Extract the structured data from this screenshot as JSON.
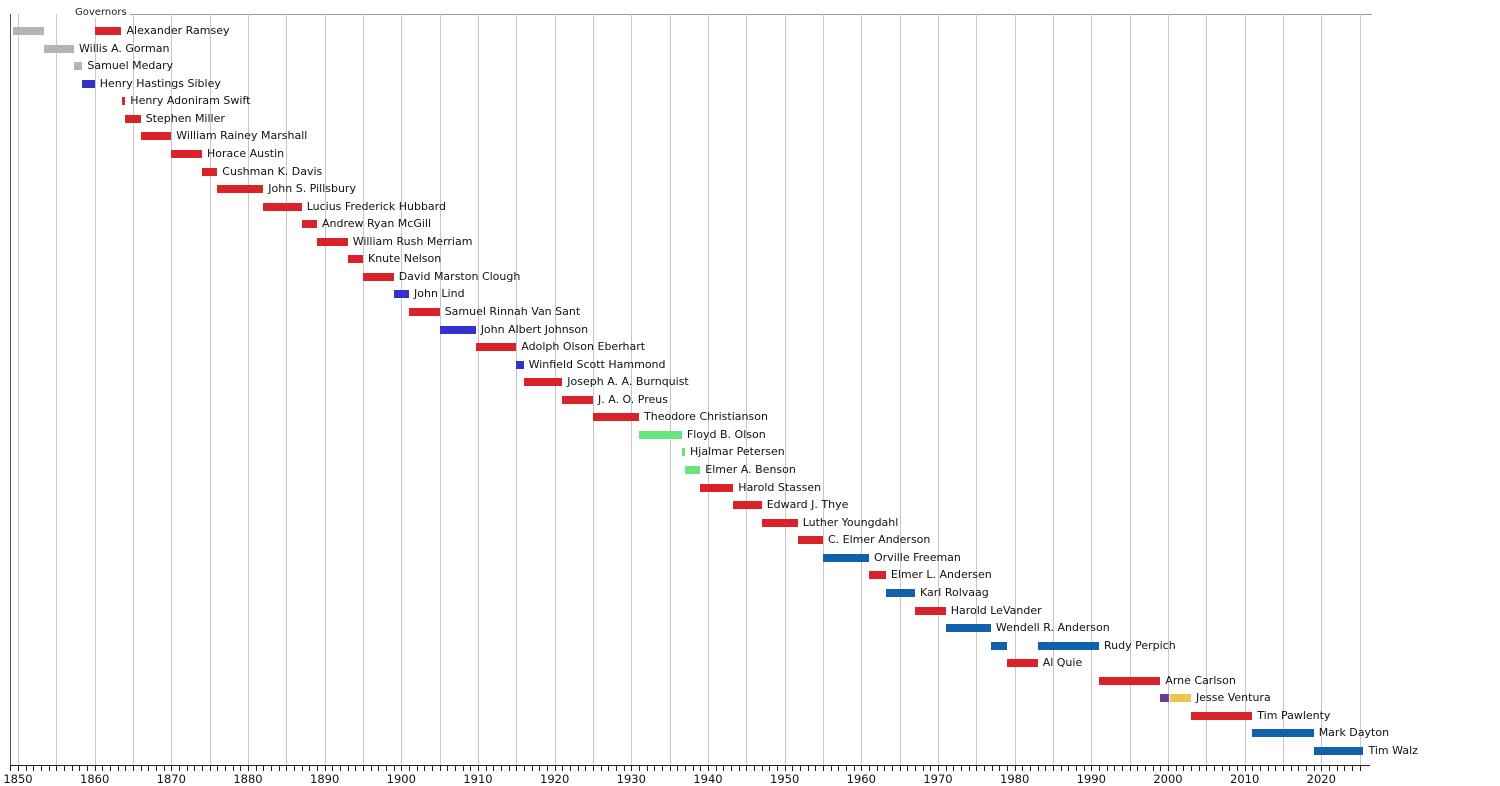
{
  "header": {
    "title": "Governors"
  },
  "chart_data": {
    "type": "bar",
    "subtype": "timeline-gantt",
    "title": "Governors",
    "xlabel": "",
    "ylabel": "",
    "x_axis": {
      "min": 1849,
      "max": 2025.5,
      "tick_years": [
        1850,
        1860,
        1870,
        1880,
        1890,
        1900,
        1910,
        1920,
        1930,
        1940,
        1950,
        1960,
        1970,
        1980,
        1990,
        2000,
        2010,
        2020
      ],
      "gridline_step_years": 5,
      "minor_tick_step_years": 1,
      "grid": true
    },
    "party_colors": {
      "republican": "#d8232a",
      "democratic": "#3333cc",
      "dfl": "#1160ab",
      "territorial": "#b3b3b3",
      "farmer_labor": "#66e57f",
      "reform": "#6a3d9a",
      "independence": "#f0c24e"
    },
    "rows": [
      {
        "name": "Alexander Ramsey",
        "terms": [
          {
            "start": 1849.4,
            "end": 1853.4,
            "party": "territorial"
          },
          {
            "start": 1860,
            "end": 1863.5,
            "party": "republican"
          }
        ]
      },
      {
        "name": "Willis A. Gorman",
        "terms": [
          {
            "start": 1853.4,
            "end": 1857.3,
            "party": "territorial"
          }
        ]
      },
      {
        "name": "Samuel Medary",
        "terms": [
          {
            "start": 1857.3,
            "end": 1858.4,
            "party": "territorial"
          }
        ]
      },
      {
        "name": "Henry Hastings Sibley",
        "terms": [
          {
            "start": 1858.4,
            "end": 1860,
            "party": "democratic"
          }
        ]
      },
      {
        "name": "Henry Adoniram Swift",
        "terms": [
          {
            "start": 1863.5,
            "end": 1864,
            "party": "republican"
          }
        ]
      },
      {
        "name": "Stephen Miller",
        "terms": [
          {
            "start": 1864,
            "end": 1866,
            "party": "republican"
          }
        ]
      },
      {
        "name": "William Rainey Marshall",
        "terms": [
          {
            "start": 1866,
            "end": 1870,
            "party": "republican"
          }
        ]
      },
      {
        "name": "Horace Austin",
        "terms": [
          {
            "start": 1870,
            "end": 1874,
            "party": "republican"
          }
        ]
      },
      {
        "name": "Cushman K. Davis",
        "terms": [
          {
            "start": 1874,
            "end": 1876,
            "party": "republican"
          }
        ]
      },
      {
        "name": "John S. Pillsbury",
        "terms": [
          {
            "start": 1876,
            "end": 1882,
            "party": "republican"
          }
        ]
      },
      {
        "name": "Lucius Frederick Hubbard",
        "terms": [
          {
            "start": 1882,
            "end": 1887,
            "party": "republican"
          }
        ]
      },
      {
        "name": "Andrew Ryan McGill",
        "terms": [
          {
            "start": 1887,
            "end": 1889,
            "party": "republican"
          }
        ]
      },
      {
        "name": "William Rush Merriam",
        "terms": [
          {
            "start": 1889,
            "end": 1893,
            "party": "republican"
          }
        ]
      },
      {
        "name": "Knute Nelson",
        "terms": [
          {
            "start": 1893,
            "end": 1895,
            "party": "republican"
          }
        ]
      },
      {
        "name": "David Marston Clough",
        "terms": [
          {
            "start": 1895,
            "end": 1899,
            "party": "republican"
          }
        ]
      },
      {
        "name": "John Lind",
        "terms": [
          {
            "start": 1899,
            "end": 1901,
            "party": "democratic"
          }
        ]
      },
      {
        "name": "Samuel Rinnah Van Sant",
        "terms": [
          {
            "start": 1901,
            "end": 1905,
            "party": "republican"
          }
        ]
      },
      {
        "name": "John Albert Johnson",
        "terms": [
          {
            "start": 1905,
            "end": 1909.7,
            "party": "democratic"
          }
        ]
      },
      {
        "name": "Adolph Olson Eberhart",
        "terms": [
          {
            "start": 1909.7,
            "end": 1915,
            "party": "republican"
          }
        ]
      },
      {
        "name": "Winfield Scott Hammond",
        "terms": [
          {
            "start": 1915,
            "end": 1915.95,
            "party": "democratic"
          }
        ]
      },
      {
        "name": "Joseph A. A. Burnquist",
        "terms": [
          {
            "start": 1915.95,
            "end": 1921,
            "party": "republican"
          }
        ]
      },
      {
        "name": "J. A. O. Preus",
        "terms": [
          {
            "start": 1921,
            "end": 1925,
            "party": "republican"
          }
        ]
      },
      {
        "name": "Theodore Christianson",
        "terms": [
          {
            "start": 1925,
            "end": 1931,
            "party": "republican"
          }
        ]
      },
      {
        "name": "Floyd B. Olson",
        "terms": [
          {
            "start": 1931,
            "end": 1936.6,
            "party": "farmer_labor"
          }
        ]
      },
      {
        "name": "Hjalmar Petersen",
        "terms": [
          {
            "start": 1936.6,
            "end": 1937,
            "party": "farmer_labor"
          }
        ]
      },
      {
        "name": "Elmer A. Benson",
        "terms": [
          {
            "start": 1937,
            "end": 1939,
            "party": "farmer_labor"
          }
        ]
      },
      {
        "name": "Harold Stassen",
        "terms": [
          {
            "start": 1939,
            "end": 1943.3,
            "party": "republican"
          }
        ]
      },
      {
        "name": "Edward J. Thye",
        "terms": [
          {
            "start": 1943.3,
            "end": 1947,
            "party": "republican"
          }
        ]
      },
      {
        "name": "Luther Youngdahl",
        "terms": [
          {
            "start": 1947,
            "end": 1951.7,
            "party": "republican"
          }
        ]
      },
      {
        "name": "C. Elmer Anderson",
        "terms": [
          {
            "start": 1951.7,
            "end": 1955,
            "party": "republican"
          }
        ]
      },
      {
        "name": "Orville Freeman",
        "terms": [
          {
            "start": 1955,
            "end": 1961,
            "party": "dfl"
          }
        ]
      },
      {
        "name": "Elmer L. Andersen",
        "terms": [
          {
            "start": 1961,
            "end": 1963.2,
            "party": "republican"
          }
        ]
      },
      {
        "name": "Karl Rolvaag",
        "terms": [
          {
            "start": 1963.2,
            "end": 1967,
            "party": "dfl"
          }
        ]
      },
      {
        "name": "Harold LeVander",
        "terms": [
          {
            "start": 1967,
            "end": 1971,
            "party": "republican"
          }
        ]
      },
      {
        "name": "Wendell R. Anderson",
        "terms": [
          {
            "start": 1971,
            "end": 1976.9,
            "party": "dfl"
          }
        ]
      },
      {
        "name": "Rudy Perpich",
        "terms": [
          {
            "start": 1976.9,
            "end": 1979,
            "party": "dfl"
          },
          {
            "start": 1983,
            "end": 1991,
            "party": "dfl"
          }
        ]
      },
      {
        "name": "Al Quie",
        "terms": [
          {
            "start": 1979,
            "end": 1983,
            "party": "republican"
          }
        ]
      },
      {
        "name": "Arne Carlson",
        "terms": [
          {
            "start": 1991,
            "end": 1999,
            "party": "republican"
          }
        ]
      },
      {
        "name": "Jesse Ventura",
        "terms": [
          {
            "start": 1999,
            "end": 2000.2,
            "party": "reform"
          },
          {
            "start": 2000.2,
            "end": 2003,
            "party": "independence"
          }
        ]
      },
      {
        "name": "Tim Pawlenty",
        "terms": [
          {
            "start": 2003,
            "end": 2011,
            "party": "republican"
          }
        ]
      },
      {
        "name": "Mark Dayton",
        "terms": [
          {
            "start": 2011,
            "end": 2019,
            "party": "dfl"
          }
        ]
      },
      {
        "name": "Tim Walz",
        "terms": [
          {
            "start": 2019,
            "end": 2025.5,
            "party": "dfl"
          }
        ]
      }
    ]
  }
}
